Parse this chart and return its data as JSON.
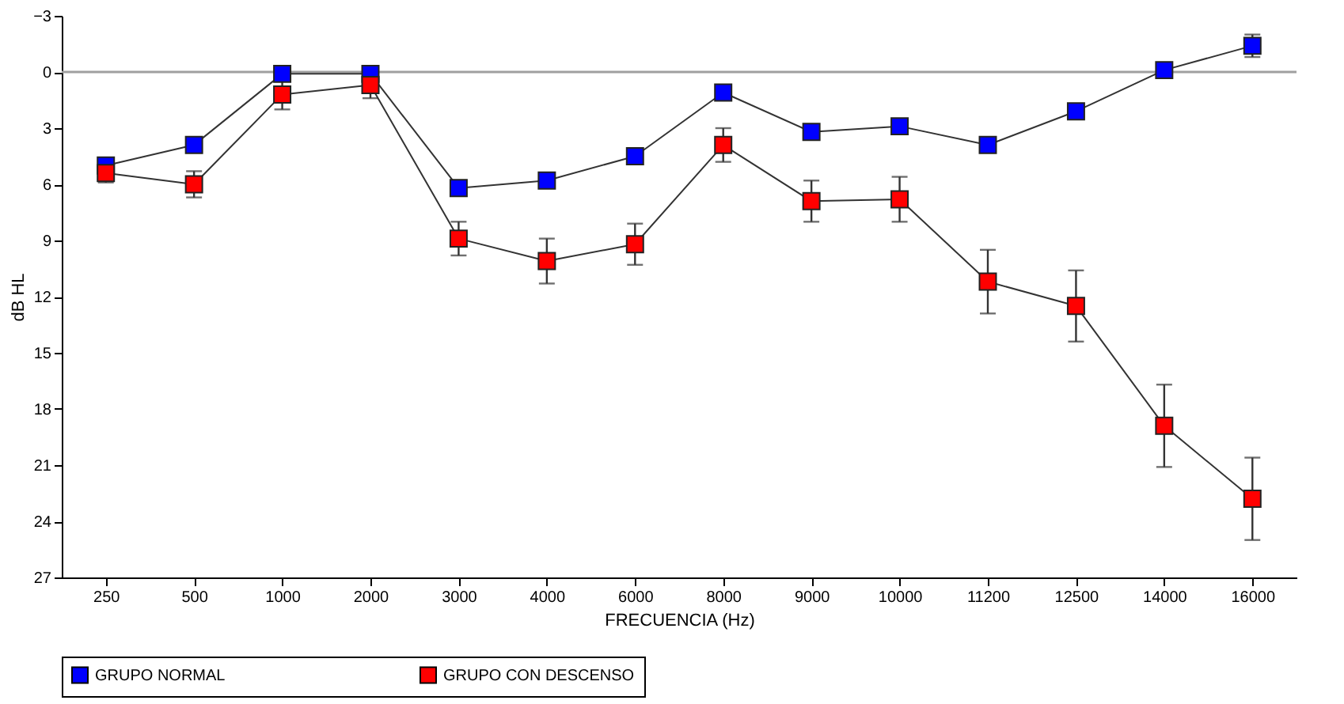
{
  "chart_data": {
    "type": "line",
    "xlabel": "FRECUENCIA (Hz)",
    "ylabel": "dB HL",
    "categories": [
      "250",
      "500",
      "1000",
      "2000",
      "3000",
      "4000",
      "6000",
      "8000",
      "9000",
      "10000",
      "11200",
      "12500",
      "14000",
      "16000"
    ],
    "series": [
      {
        "name": "GRUPO NORMAL",
        "color": "#0000ff",
        "values": [
          5.0,
          3.9,
          0.1,
          0.1,
          6.2,
          5.8,
          4.5,
          1.1,
          3.2,
          2.9,
          3.9,
          2.1,
          -0.1,
          -1.4
        ],
        "errors": [
          0.3,
          null,
          null,
          0.3,
          null,
          null,
          null,
          0.3,
          null,
          0.3,
          null,
          null,
          0.3,
          0.6
        ]
      },
      {
        "name": "GRUPO CON DESCENSO",
        "color": "#ff0000",
        "values": [
          5.4,
          6.0,
          1.2,
          0.7,
          8.9,
          10.1,
          9.2,
          3.9,
          6.9,
          6.8,
          11.2,
          12.5,
          18.9,
          22.8
        ],
        "errors": [
          0.5,
          0.7,
          0.8,
          0.7,
          0.9,
          1.2,
          1.1,
          0.9,
          1.1,
          1.2,
          1.7,
          1.9,
          2.2,
          2.2
        ]
      }
    ],
    "ylim": [
      27,
      -3
    ],
    "yticks": [
      -3,
      0,
      3,
      6,
      9,
      12,
      15,
      18,
      21,
      24,
      27
    ],
    "ref_lines": [
      {
        "axis": "y",
        "value": 0,
        "color": "#a0a0a0"
      }
    ],
    "grid": false,
    "legend": "bottom",
    "marker": "square",
    "line_style": "solid"
  }
}
